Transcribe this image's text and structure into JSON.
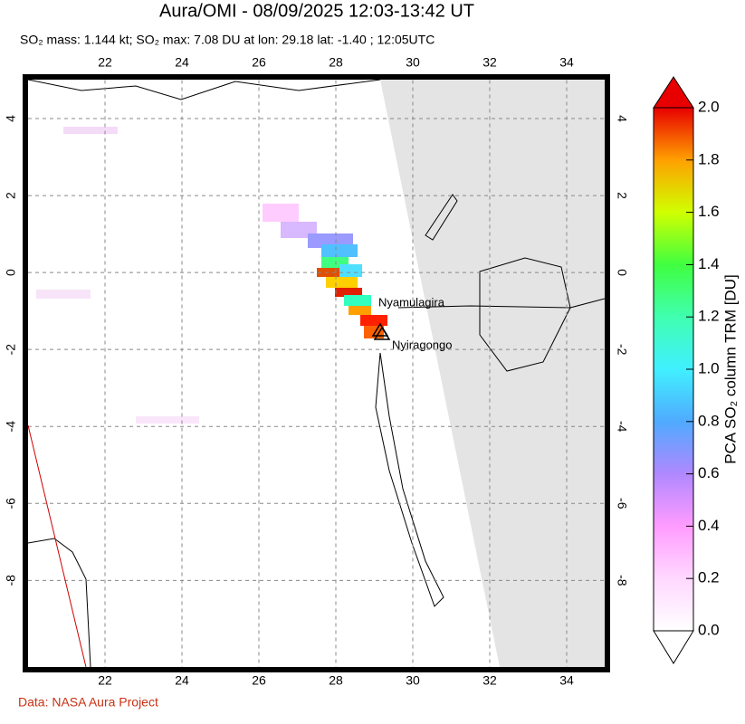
{
  "title": "Aura/OMI - 08/09/2025 12:03-13:42 UT",
  "subtitle": "SO₂ mass: 1.144 kt; SO₂ max: 7.08 DU at lon: 29.18 lat: -1.40 ; 12:05UTC",
  "map": {
    "xlim": [
      20,
      35
    ],
    "ylim": [
      -10.25,
      5
    ],
    "xticks": [
      22,
      24,
      26,
      28,
      30,
      32,
      34
    ],
    "yticks": [
      -8,
      -6,
      -4,
      -2,
      0,
      2,
      4
    ]
  },
  "volcanoes": [
    "Nyamulagira",
    "Nyiragongo"
  ],
  "colorbar": {
    "label": "PCA SO₂ column TRM [DU]",
    "lim": [
      0,
      2
    ],
    "ticks": [
      {
        "value": 0,
        "label": "0.0"
      },
      0.2,
      0.4,
      0.6,
      0.8,
      {
        "value": 1,
        "label": "1.0"
      },
      1.2,
      1.4,
      1.6,
      1.8,
      {
        "value": 2,
        "label": "2.0"
      }
    ]
  },
  "credit": "Data: NASA Aura Project"
}
